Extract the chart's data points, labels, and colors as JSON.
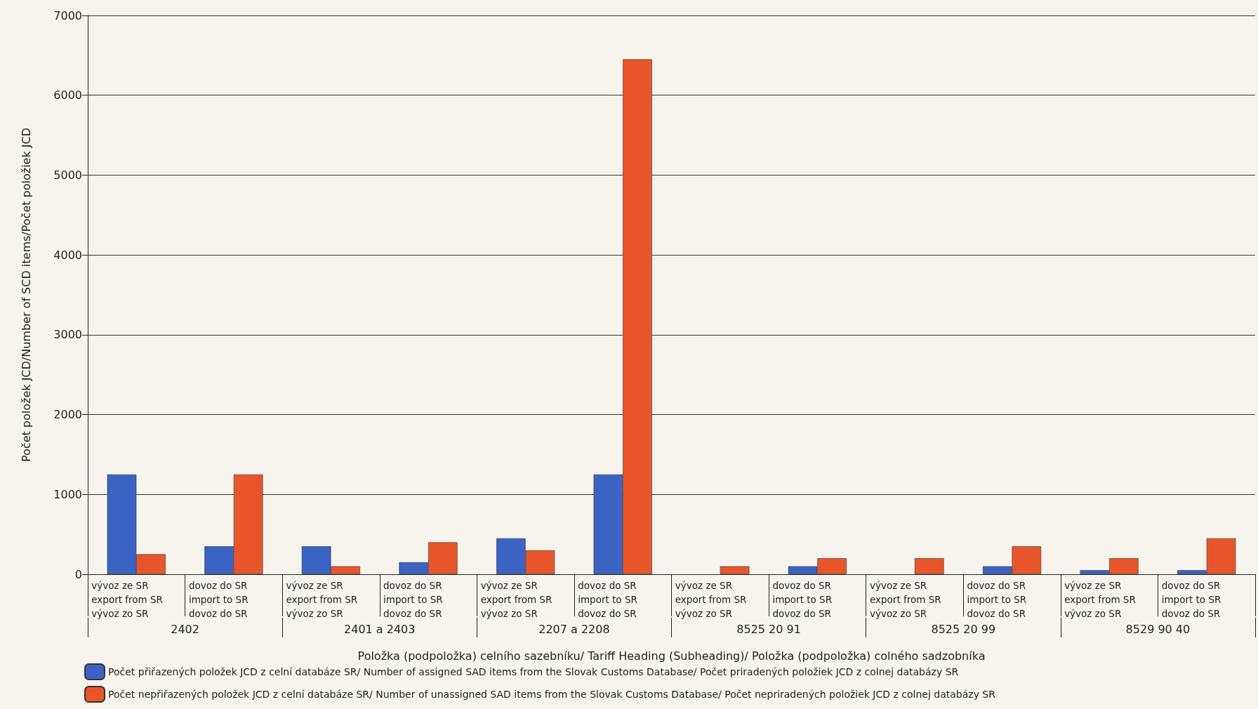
{
  "chart_data": {
    "type": "bar",
    "xlabel": "Položka (podpoložka) celního sazebníku/ Tariff Heading (Subheading)/ Položka (podpoložka) colného sadzobníka",
    "ylabel": "Počet položek JCD/Number of SCD items/Počet položiek JCD",
    "categories": [
      "vývoz ze SR\nexport from SR\nvývoz zo SR",
      "dovoz do SR\nimport to SR\ndovoz do SR",
      "vývoz ze SR\nexport from SR\nvývoz zo SR",
      "dovoz do SR\nimport to SR\ndovoz do SR",
      "vývoz ze SR\nexport from SR\nvývoz zo SR",
      "dovoz do SR\nimport to SR\ndovoz do SR",
      "vývoz ze SR\nexport from SR\nvývoz zo SR",
      "dovoz do SR\nimport to SR\ndovoz do SR",
      "vývoz ze SR\nexport from SR\nvývoz zo SR",
      "dovoz do SR\nimport to SR\ndovoz do SR",
      "vývoz ze SR\nexport from SR\nvývoz zo SR",
      "dovoz do SR\nimport to SR\ndovoz do SR"
    ],
    "annotations": [
      "2402",
      "2401 a 2403",
      "2207 a 2208",
      "8525 20 91",
      "8525 20 99",
      "8529 90 40"
    ],
    "series": [
      {
        "name": "Počet přiřazených položek JCD z celní databáze SR/ Number of assigned SAD items from the Slovak Customs Database/ Počet priradených položiek JCD z colnej databázy SR",
        "color": "#3b63c4",
        "values": [
          1250,
          350,
          350,
          150,
          450,
          1250,
          null,
          100,
          null,
          100,
          50,
          50
        ]
      },
      {
        "name": "Počet nepřiřazených položek JCD z celní databáze SR/ Number of unassigned SAD items from the Slovak Customs Database/ Počet nepriradených položiek JCD z colnej databázy SR",
        "color": "#e8552b",
        "values": [
          250,
          1250,
          100,
          400,
          300,
          6450,
          100,
          200,
          200,
          350,
          200,
          450
        ]
      }
    ],
    "ylim": [
      0,
      7000
    ],
    "yticks": [
      0,
      1000,
      2000,
      3000,
      4000,
      5000,
      6000,
      7000
    ],
    "grid": "y",
    "legend": "bottom left"
  }
}
